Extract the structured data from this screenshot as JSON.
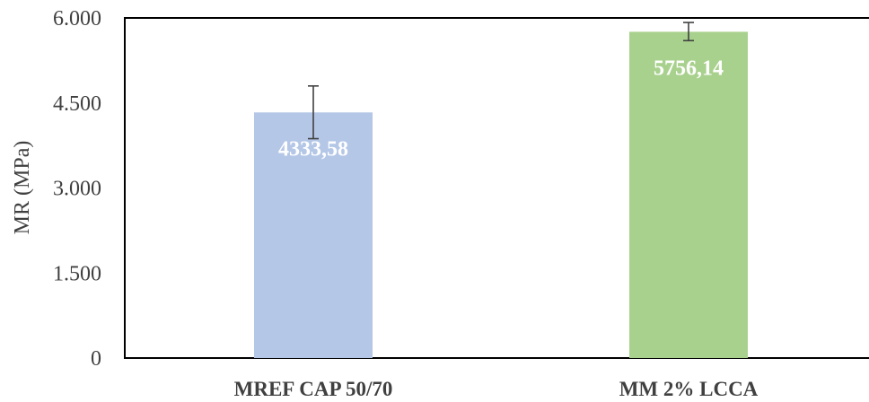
{
  "chart_data": {
    "type": "bar",
    "categories": [
      "MREF CAP 50/70",
      "MM 2% LCCA"
    ],
    "values": [
      4333.58,
      5756.14
    ],
    "value_labels": [
      "4333,58",
      "5756,14"
    ],
    "error_bars": [
      {
        "low": 3870,
        "high": 4800
      },
      {
        "low": 5600,
        "high": 5920
      }
    ],
    "bar_colors": [
      "#b4c7e7",
      "#a9d18e"
    ],
    "error_color": "#404040",
    "title": "",
    "xlabel": "",
    "ylabel": "MR (MPa)",
    "ylim": [
      0,
      6000
    ],
    "yticks": [
      {
        "value": 0,
        "label": "0"
      },
      {
        "value": 1500,
        "label": "1.500"
      },
      {
        "value": 3000,
        "label": "3.000"
      },
      {
        "value": 4500,
        "label": "4.500"
      },
      {
        "value": 6000,
        "label": "6.000"
      }
    ],
    "grid": false,
    "legend": "none"
  }
}
